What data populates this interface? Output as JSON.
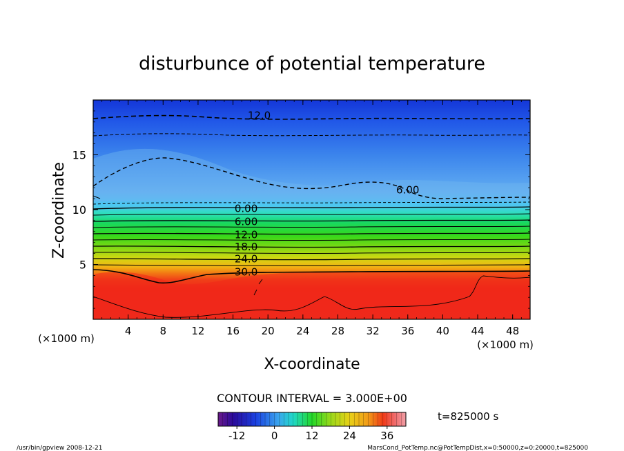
{
  "chart_data": {
    "type": "heatmap",
    "title": "disturbunce of potential temperature",
    "xlabel": "X-coordinate",
    "ylabel": "Z-coordinate",
    "x_unit_left": "(×1000 m)",
    "x_unit_right": "(×1000 m)",
    "xlim": [
      0,
      50
    ],
    "ylim": [
      0,
      20
    ],
    "xticks": [
      "4",
      "8",
      "12",
      "16",
      "20",
      "24",
      "28",
      "32",
      "36",
      "40",
      "44",
      "48"
    ],
    "yticks": [
      "5",
      "10",
      "15"
    ],
    "contour_interval_text": "CONTOUR INTERVAL = 3.000E+00",
    "time_text": "t=825000 s",
    "colorbar": {
      "ticks": [
        "-12",
        "0",
        "12",
        "24",
        "36"
      ],
      "range": [
        -18,
        42
      ]
    },
    "contour_labels": [
      {
        "text": "12.0",
        "x": 19,
        "z": 18.6
      },
      {
        "text": "6.00",
        "x": 36,
        "z": 11.8
      },
      {
        "text": "0.00",
        "x": 17.5,
        "z": 10.1
      },
      {
        "text": "6.00",
        "x": 17.5,
        "z": 8.9
      },
      {
        "text": "12.0",
        "x": 17.5,
        "z": 7.7
      },
      {
        "text": "18.0",
        "x": 17.5,
        "z": 6.6
      },
      {
        "text": "24.0",
        "x": 17.5,
        "z": 5.5
      },
      {
        "text": "30.0",
        "x": 17.5,
        "z": 4.3
      }
    ]
  },
  "footer": {
    "left": "/usr/bin/gpview   2008-12-21",
    "right": "MarsCond_PotTemp.nc@PotTempDist,x=0:50000,z=0:20000,t=825000"
  }
}
